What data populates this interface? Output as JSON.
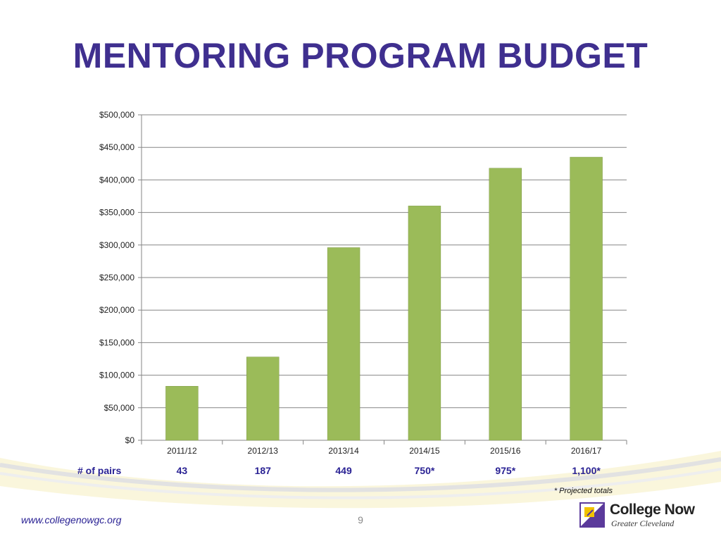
{
  "slide": {
    "title": "MENTORING PROGRAM BUDGET",
    "footnote": "* Projected totals",
    "website": "www.collegenowgc.org",
    "page_number": "9"
  },
  "logo": {
    "name": "College Now",
    "subtitle": "Greater Cleveland"
  },
  "pairs": {
    "label": "# of pairs",
    "values": [
      "43",
      "187",
      "449",
      "750*",
      "975*",
      "1,100*"
    ]
  },
  "colors": {
    "title": "#3f2f8f",
    "bar": "#9bbb59",
    "bar_border": "#7f9a45",
    "pairs_text": "#2a2294",
    "gridline": "#868686",
    "swoosh": "#f3e9a3",
    "logo_accent": "#5b3a9b"
  },
  "chart_data": {
    "type": "bar",
    "categories": [
      "2011/12",
      "2012/13",
      "2013/14",
      "2014/15",
      "2015/16",
      "2016/17"
    ],
    "values": [
      83000,
      128000,
      296000,
      360000,
      418000,
      435000
    ],
    "y_ticks": [
      "$0",
      "$50,000",
      "$100,000",
      "$150,000",
      "$200,000",
      "$250,000",
      "$300,000",
      "$350,000",
      "$400,000",
      "$450,000",
      "$500,000"
    ],
    "ylim": [
      0,
      500000
    ],
    "grid": true,
    "legend": "none",
    "title": "",
    "xlabel": "",
    "ylabel": ""
  }
}
